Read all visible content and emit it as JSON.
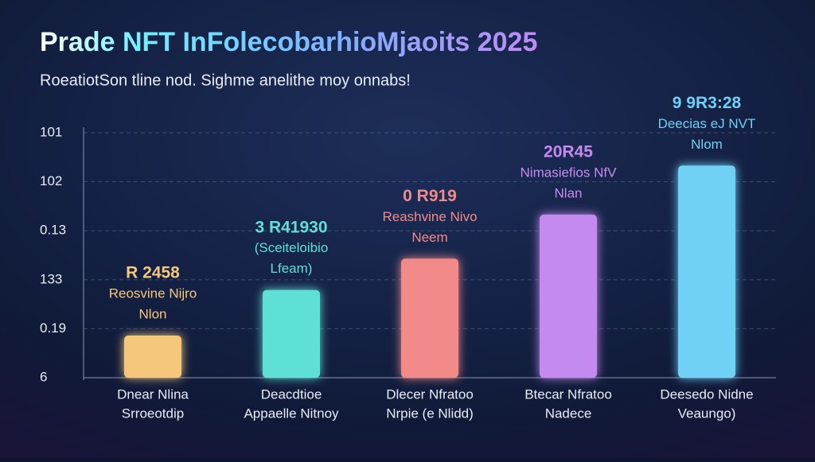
{
  "chart_data": {
    "type": "bar",
    "title": "Prade NFT InFolecobarhioMjaoits 2025",
    "subtitle": "RoeatiotSon tline nod. Sighme anelithe moy onnabs!",
    "categories": [
      [
        "Dnear Nlina",
        "Srroeotdip"
      ],
      [
        "Deacdtioe",
        "Appaelle Nitnoy"
      ],
      [
        "Dlecer Nfratoo",
        "Nrpie (e Nlidd)"
      ],
      [
        "Btecar Nfratoo",
        "Nadece"
      ],
      [
        "Deesedo Nidne",
        "Veaungo)"
      ]
    ],
    "values": [
      0.86,
      1.79,
      2.43,
      3.33,
      4.33
    ],
    "colors": [
      "#f5c77a",
      "#5fe0d6",
      "#f28a8a",
      "#c48af0",
      "#6fd0f5"
    ],
    "bar_labels": [
      [
        "R 2458",
        "Reosvine Nijro",
        "Nlon"
      ],
      [
        "3 R41930",
        "(Sceiteloibio",
        "Lfeam)"
      ],
      [
        "0 R919",
        "Reashvine Nivo",
        "Neem"
      ],
      [
        "20R45",
        "Nimasiefios NfV",
        "Nlan"
      ],
      [
        "9 9R3:28",
        "Deecias eJ NVT",
        "Nlom"
      ]
    ],
    "ylim": [
      0,
      5
    ],
    "yticks": [
      {
        "value": 0,
        "label": "6"
      },
      {
        "value": 1,
        "label": "0.19"
      },
      {
        "value": 2,
        "label": "133"
      },
      {
        "value": 3,
        "label": "0.13"
      },
      {
        "value": 4,
        "label": "102"
      },
      {
        "value": 5,
        "label": "101"
      }
    ],
    "grid": true
  }
}
